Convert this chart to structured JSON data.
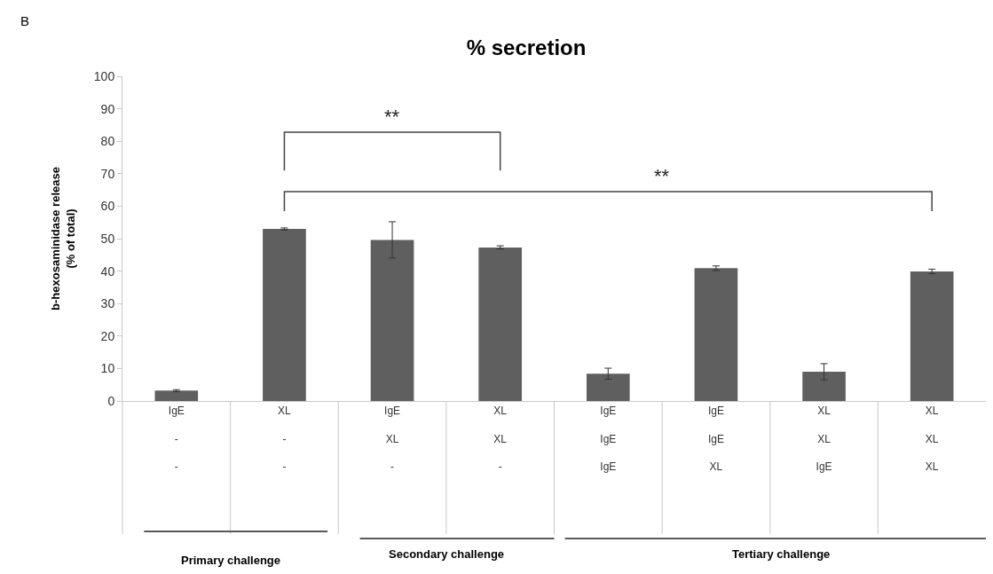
{
  "chart_data": {
    "type": "bar",
    "title": "% secretion",
    "ylabel": "b-hexosaminidase release\n(% of total)",
    "categories": [
      "IgE\n-\n-",
      "XL\n-\n-",
      "IgE\nXL\n-",
      "XL\nXL\n-",
      "IgE\nIgE\nIgE",
      "IgE\nIgE\nXL",
      "XL\nXL\nIgE",
      "XL\nXL\nXL"
    ],
    "values": [
      3.2,
      53.0,
      49.6,
      47.3,
      8.4,
      40.9,
      9.0,
      39.9
    ],
    "errors": [
      0.3,
      0.3,
      5.6,
      0.5,
      1.7,
      0.7,
      2.5,
      0.7
    ],
    "color": "#5f5f5f",
    "ylim": [
      0,
      100
    ],
    "yticks": [
      0,
      10,
      20,
      30,
      40,
      50,
      60,
      70,
      80,
      90,
      100
    ],
    "grid": false,
    "annotations": [
      "B",
      "**",
      "**",
      "Primary challenge",
      "Secondary challenge",
      "Tertiary challenge"
    ]
  }
}
